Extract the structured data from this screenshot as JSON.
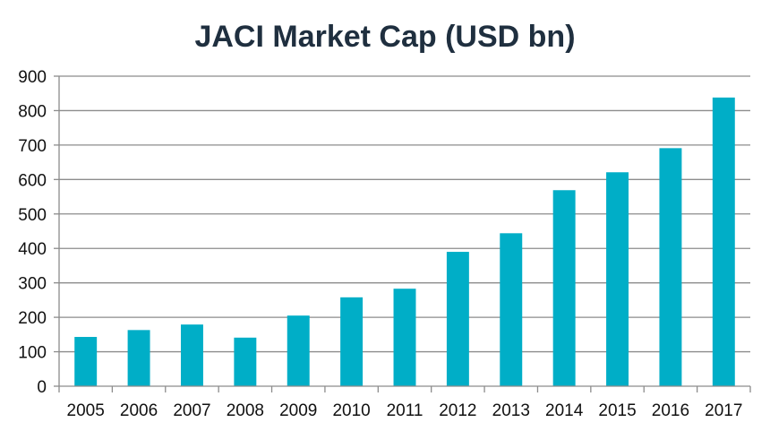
{
  "chart_data": {
    "type": "bar",
    "title": "JACI Market Cap (USD bn)",
    "xlabel": "",
    "ylabel": "",
    "categories": [
      "2005",
      "2006",
      "2007",
      "2008",
      "2009",
      "2010",
      "2011",
      "2012",
      "2013",
      "2014",
      "2015",
      "2016",
      "2017"
    ],
    "values": [
      143,
      163,
      179,
      141,
      205,
      258,
      283,
      390,
      444,
      569,
      621,
      691,
      838
    ],
    "ylim": [
      0,
      900
    ],
    "yticks": [
      0,
      100,
      200,
      300,
      400,
      500,
      600,
      700,
      800,
      900
    ],
    "grid": true,
    "legend": "none",
    "bar_color": "#00aec7",
    "grid_color": "#8c8c8c",
    "axis_color": "#8c8c8c",
    "title_color": "#1f2f3f"
  }
}
